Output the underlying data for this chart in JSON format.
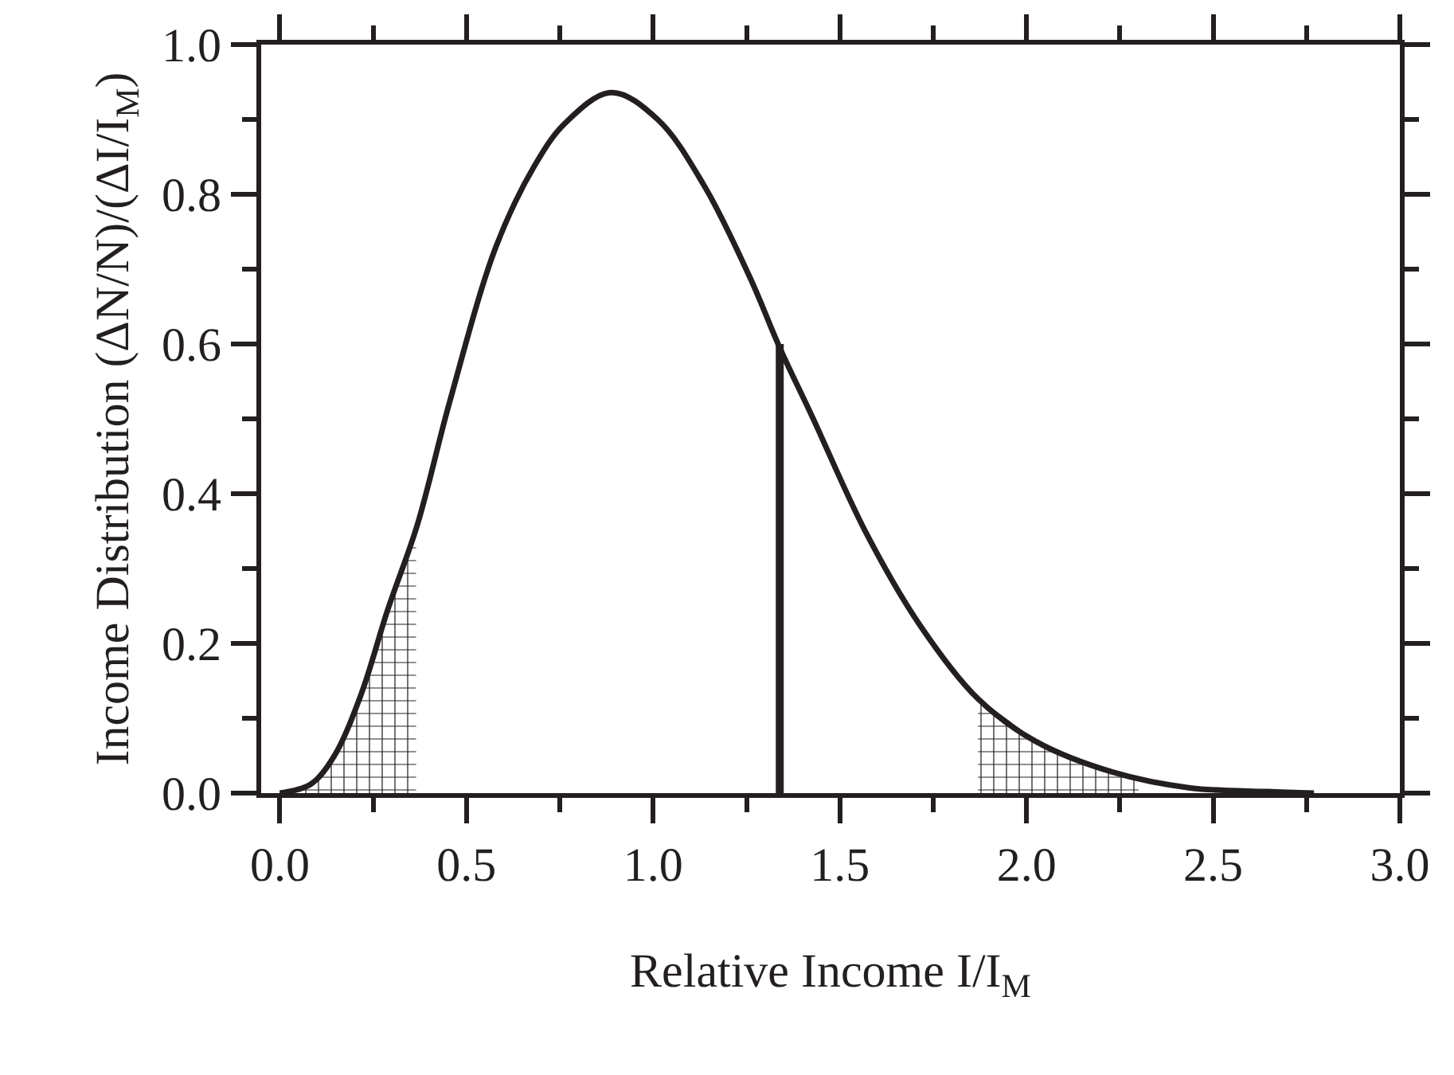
{
  "chart_data": {
    "type": "line",
    "xlabel": "Relative Income I/I$_{M}$",
    "ylabel": "Income Distribution (ΔN/N)/(ΔI/I$_{M}$)",
    "xlim": [
      -0.05,
      3.0
    ],
    "ylim": [
      0,
      1.0
    ],
    "xticks": [
      {
        "value": 0,
        "label": "0.0"
      },
      {
        "value": 0.25,
        "label": null
      },
      {
        "value": 0.5,
        "label": "0.5"
      },
      {
        "value": 0.75,
        "label": null
      },
      {
        "value": 1,
        "label": "1.0"
      },
      {
        "value": 1.25,
        "label": null
      },
      {
        "value": 1.5,
        "label": "1.5"
      },
      {
        "value": 1.75,
        "label": null
      },
      {
        "value": 2,
        "label": "2.0"
      },
      {
        "value": 2.25,
        "label": null
      },
      {
        "value": 2.5,
        "label": "2.5"
      },
      {
        "value": 2.75,
        "label": null
      },
      {
        "value": 3,
        "label": "3.0"
      }
    ],
    "yticks": [
      {
        "value": 0,
        "label": "0.0"
      },
      {
        "value": 0.1,
        "label": null
      },
      {
        "value": 0.2,
        "label": "0.2"
      },
      {
        "value": 0.3,
        "label": null
      },
      {
        "value": 0.4,
        "label": "0.4"
      },
      {
        "value": 0.5,
        "label": null
      },
      {
        "value": 0.6,
        "label": "0.6"
      },
      {
        "value": 0.7,
        "label": null
      },
      {
        "value": 0.8,
        "label": "0.8"
      },
      {
        "value": 0.9,
        "label": null
      },
      {
        "value": 1,
        "label": "1.0"
      }
    ],
    "grid": false,
    "marker": "none",
    "line_style": "solid",
    "series": [
      {
        "type": "area",
        "color": "#231f20",
        "x": [
          0.0,
          0.083,
          0.145,
          0.217,
          0.289,
          0.365
        ],
        "values": [
          0,
          0.012,
          0.049,
          0.131,
          0.245,
          0.355
        ]
      },
      {
        "type": "area",
        "color": "#231f20",
        "x": [
          1.87,
          2.025,
          2.15,
          2.3
        ],
        "values": [
          0.126,
          0.069,
          0.04,
          0.02
        ]
      },
      {
        "color": "#231f20",
        "x": [
          0,
          0.083,
          0.145,
          0.217,
          0.289,
          0.368,
          0.455,
          0.579,
          0.682,
          0.764,
          0.888,
          1.012,
          1.136,
          1.26,
          1.339,
          1.426,
          1.57,
          1.715,
          1.87,
          2.025,
          2.231,
          2.438,
          2.645,
          2.77
        ],
        "values": [
          0,
          0.012,
          0.049,
          0.131,
          0.245,
          0.358,
          0.523,
          0.73,
          0.838,
          0.895,
          0.936,
          0.9,
          0.812,
          0.688,
          0.595,
          0.503,
          0.348,
          0.224,
          0.126,
          0.069,
          0.028,
          0.007,
          0.002,
          0
        ]
      },
      {
        "color": "#231f20",
        "x": [
          1.339,
          1.339
        ],
        "values": [
          0,
          0.6
        ]
      }
    ]
  }
}
